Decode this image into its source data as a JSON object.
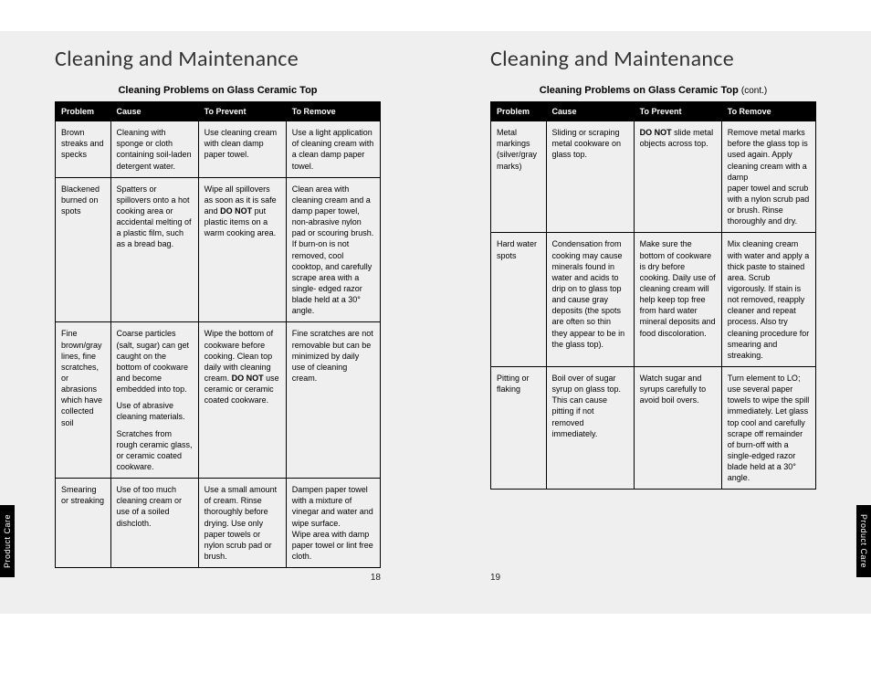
{
  "left": {
    "title": "Cleaning and Maintenance",
    "subheading": "Cleaning Problems on Glass Ceramic Top",
    "headers": [
      "Problem",
      "Cause",
      "To Prevent",
      "To Remove"
    ],
    "rows": [
      {
        "problem": "Brown streaks and specks",
        "cause": [
          "Cleaning with sponge or cloth containing soil-laden detergent water."
        ],
        "prevent": "Use cleaning cream with clean damp paper towel.",
        "remove": "Use a light application of cleaning cream with a clean damp paper towel."
      },
      {
        "problem": "Blackened burned on spots",
        "cause": [
          "Spatters or spillovers onto a hot cooking area or accidental melting of a plastic film, such as a bread bag."
        ],
        "prevent": "Wipe all spillovers as soon as it is safe and <b>DO NOT</b> put plastic items on a warm cooking area.",
        "remove": "Clean area with cleaning cream and a damp paper towel, non-abrasive nylon pad or scouring brush. If burn-on is not removed, cool cooktop, and carefully scrape area with a single- edged razor blade held at a 30° angle."
      },
      {
        "problem": "Fine brown/gray lines, fine scratches, or abrasions which have collected soil",
        "cause": [
          "Coarse particles (salt, sugar) can get caught on the bottom of cookware and become embedded into top.",
          "Use of abrasive cleaning materials.",
          "Scratches from rough ceramic glass, or ceramic coated cookware."
        ],
        "prevent": "Wipe the bottom of cookware before cooking. Clean top daily with cleaning cream. <b>DO NOT</b> use ceramic or ceramic coated cookware.",
        "remove": "Fine scratches are not removable but can be minimized by daily use of cleaning cream."
      },
      {
        "problem": "Smearing or streaking",
        "cause": [
          "Use of too much cleaning cream or use of a soiled dishcloth."
        ],
        "prevent": "Use a small amount of cream. Rinse thoroughly before drying. Use only paper towels or nylon scrub pad or brush.",
        "remove": "Dampen paper towel with a mixture of vinegar and water and wipe surface.<br>Wipe area with damp paper towel or lint free cloth."
      }
    ],
    "pageNumber": "18",
    "sideTab": "Product Care"
  },
  "right": {
    "title": "Cleaning and Maintenance",
    "subheading": "Cleaning Problems on Glass Ceramic Top",
    "subheadingCont": "(cont.)",
    "headers": [
      "Problem",
      "Cause",
      "To Prevent",
      "To Remove"
    ],
    "rows": [
      {
        "problem": "Metal markings (silver/gray marks)",
        "cause": [
          "Sliding or scraping metal cookware on glass top."
        ],
        "prevent": "<b>DO NOT</b> slide metal objects across top.",
        "remove": "Remove metal marks before the glass top is used again. Apply cleaning cream with a damp<br>paper towel and scrub with a nylon scrub pad or brush. Rinse thoroughly and dry."
      },
      {
        "problem": "Hard water spots",
        "cause": [
          "Condensation from cooking may cause minerals found in water and acids to drip on to glass top and cause gray deposits (the spots are often so thin they appear to be in the glass top)."
        ],
        "prevent": "Make sure the bottom of cookware is dry before cooking. Daily use of cleaning cream will help keep top free from hard water mineral deposits and food discoloration.",
        "remove": "Mix cleaning cream with water and apply a thick paste to stained area. Scrub vigorously. If stain is not removed, reapply cleaner and repeat process. Also try cleaning procedure for smearing and streaking."
      },
      {
        "problem": "Pitting or flaking",
        "cause": [
          "Boil over of sugar syrup on glass top. This can cause pitting if not removed immediately."
        ],
        "prevent": "Watch sugar and syrups carefully to avoid boil overs.",
        "remove": "Turn element to LO; use several paper towels to wipe the spill immediately. Let glass top cool and carefully scrape off remainder of burn-off with a single-edged razor blade held at a 30° angle."
      }
    ],
    "pageNumber": "19",
    "sideTab": "Product Care"
  }
}
